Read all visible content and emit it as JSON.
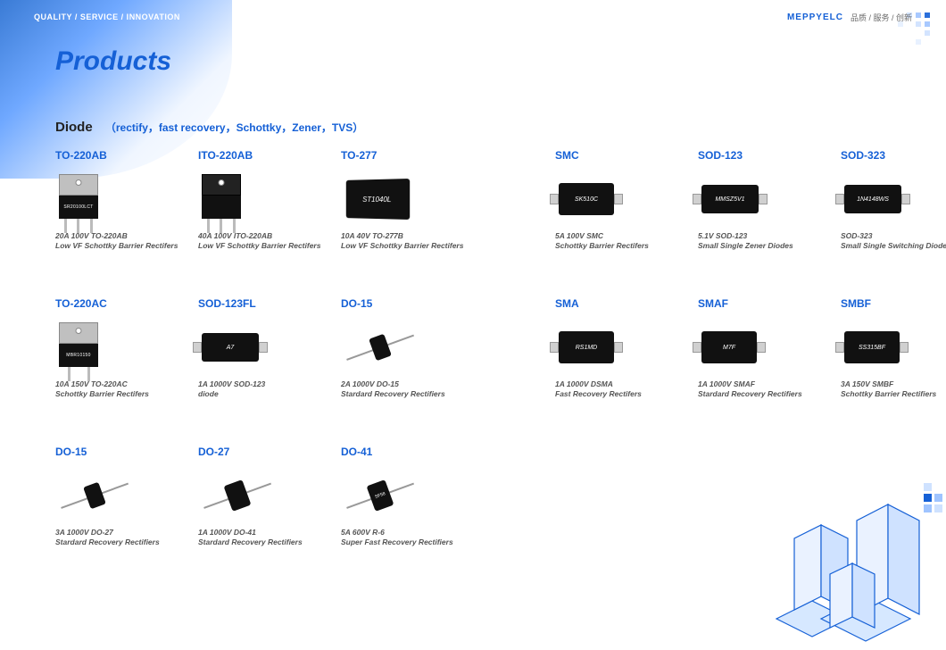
{
  "header": {
    "tagline": "QUALITY / SERVICE / INNOVATION",
    "brand": "MEPPYELC",
    "brand_sub": "品质 / 服务 / 创新"
  },
  "page_title": "Products",
  "section": {
    "name": "Diode",
    "subtitle": "（rectify，fast recovery，Schottky，Zener，TVS）"
  },
  "colors": {
    "accent": "#1560d6",
    "body_text": "#555555",
    "chip_body": "#111111",
    "metal": "#c0c0c0"
  },
  "products": [
    {
      "id": "p0",
      "title": "TO-220AB",
      "chip_label": "SR20100LCT",
      "desc_l1": "20A 100V TO-220AB",
      "desc_l2": "Low VF Schottky Barrier Rectifers",
      "shape": "to220ab"
    },
    {
      "id": "p1",
      "title": "ITO-220AB",
      "chip_label": "",
      "desc_l1": "40A 100V ITO-220AB",
      "desc_l2": "Low VF Schottky Barrier Rectifers",
      "shape": "ito220"
    },
    {
      "id": "p2",
      "title": "TO-277",
      "chip_label": "ST1040L",
      "desc_l1": "10A 40V TO-277B",
      "desc_l2": "Low VF Schottky Barrier Rectifers",
      "shape": "to277"
    },
    {
      "id": "p3",
      "title": "SMC",
      "chip_label": "SK510C",
      "desc_l1": "5A 100V SMC",
      "desc_l2": "Schottky Barrier Rectifers",
      "shape": "smc"
    },
    {
      "id": "p4",
      "title": "SOD-123",
      "chip_label": "MMSZ5V1",
      "desc_l1": "5.1V SOD-123",
      "desc_l2": "Small Single Zener Diodes",
      "shape": "sod123"
    },
    {
      "id": "p5",
      "title": "SOD-323",
      "chip_label": "1N4148WS",
      "desc_l1": "SOD-323",
      "desc_l2": "Small Single Switching Diodes",
      "shape": "sod323"
    },
    {
      "id": "p6",
      "title": "TO-220AC",
      "chip_label": "MBR10150",
      "desc_l1": "10A 150V TO-220AC",
      "desc_l2": "Schottky Barrier Rectifers",
      "shape": "to220ac"
    },
    {
      "id": "p7",
      "title": "SOD-123FL",
      "chip_label": "A7",
      "desc_l1": "1A 1000V SOD-123",
      "desc_l2": "diode",
      "shape": "sod123fl"
    },
    {
      "id": "p8",
      "title": "DO-15",
      "chip_label": "",
      "desc_l1": "2A 1000V DO-15",
      "desc_l2": "Stardard Recovery Rectifiers",
      "shape": "do15"
    },
    {
      "id": "p9",
      "title": "SMA",
      "chip_label": "RS1MD",
      "desc_l1": "1A 1000V DSMA",
      "desc_l2": "Fast Recovery Rectifers",
      "shape": "sma"
    },
    {
      "id": "p10",
      "title": "SMAF",
      "chip_label": "M7F",
      "desc_l1": "1A 1000V SMAF",
      "desc_l2": "Stardard Recovery Rectifiers",
      "shape": "smaf"
    },
    {
      "id": "p11",
      "title": "SMBF",
      "chip_label": "SS315BF",
      "desc_l1": "3A 150V SMBF",
      "desc_l2": "Schottky Barrier Rectifiers",
      "shape": "smbf"
    },
    {
      "id": "p12",
      "title": "DO-15",
      "chip_label": "",
      "desc_l1": "3A 1000V DO-27",
      "desc_l2": "Stardard Recovery Rectifiers",
      "shape": "do15"
    },
    {
      "id": "p13",
      "title": "DO-27",
      "chip_label": "",
      "desc_l1": "1A 1000V DO-41",
      "desc_l2": "Stardard Recovery Rectifiers",
      "shape": "do27"
    },
    {
      "id": "p14",
      "title": "DO-41",
      "chip_label": "SF58",
      "desc_l1": "5A 600V R-6",
      "desc_l2": "Super Fast Recovery Rectifiers",
      "shape": "do41"
    }
  ]
}
